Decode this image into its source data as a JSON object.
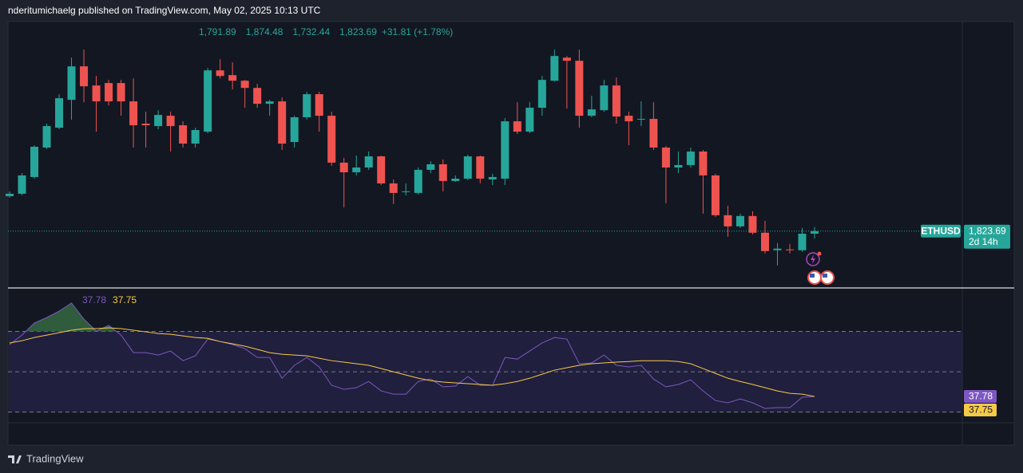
{
  "header": {
    "published": "nderitumichaelg published on TradingView.com, May 02, 2025 10:13 UTC",
    "footer": "TradingView"
  },
  "chart_data": [
    {
      "type": "candlestick",
      "symbol": "ETHUSD",
      "countdown": "2d 14h",
      "header_labels": [
        "1,791.89",
        "1,874.48",
        "1,732.44",
        "1,823.69"
      ],
      "change_label": "+31.81 (+1.78%)",
      "up_color": "#26a69a",
      "down_color": "#ef5350",
      "ylim": [
        1130,
        4410
      ],
      "open": [
        2257,
        2287,
        2494,
        2859,
        3105,
        3450,
        3865,
        3628,
        3658,
        3658,
        3431,
        3155,
        3125,
        3253,
        3135,
        2908,
        3056,
        3815,
        3756,
        3687,
        3598,
        3401,
        3431,
        2928,
        3234,
        3520,
        3253,
        2672,
        2553,
        2612,
        2750,
        2415,
        2307,
        2297,
        2583,
        2652,
        2445,
        2474,
        2750,
        2464,
        2474,
        3184,
        3056,
        3352,
        3687,
        3973,
        3934,
        3253,
        3322,
        3628,
        3253,
        3204,
        3214,
        2859,
        2612,
        2642,
        2810,
        2514,
        2021,
        1883,
        2011,
        1804,
        1587,
        1597,
        1587,
        1791.89
      ],
      "high": [
        2317,
        2543,
        2888,
        3155,
        3520,
        3973,
        4072,
        3746,
        3697,
        3697,
        3717,
        3303,
        3322,
        3303,
        3184,
        3105,
        3845,
        3953,
        3914,
        3697,
        3648,
        3450,
        3480,
        3253,
        3549,
        3549,
        3303,
        2731,
        2760,
        2810,
        2760,
        2464,
        2415,
        2612,
        2691,
        2711,
        2514,
        2770,
        2760,
        2534,
        3224,
        3421,
        3421,
        3746,
        4072,
        3993,
        4072,
        3500,
        3697,
        3727,
        3303,
        3431,
        3421,
        2879,
        2810,
        2859,
        2829,
        2534,
        2139,
        2041,
        2070,
        1952,
        1676,
        1666,
        1863,
        1874.48
      ],
      "low": [
        2238,
        2267,
        2474,
        2839,
        3086,
        3204,
        3421,
        3056,
        3381,
        3253,
        2859,
        2859,
        3086,
        2810,
        2859,
        2859,
        3036,
        3717,
        3579,
        3352,
        3352,
        3253,
        2829,
        2859,
        3204,
        3056,
        2632,
        2119,
        2514,
        2583,
        2395,
        2159,
        2267,
        2277,
        2543,
        2317,
        2435,
        2455,
        2415,
        2395,
        2395,
        3027,
        3036,
        3253,
        3677,
        3342,
        3105,
        3234,
        3303,
        3155,
        2888,
        3125,
        2829,
        2169,
        2543,
        2612,
        2041,
        2001,
        1755,
        1863,
        1784,
        1548,
        1400,
        1548,
        1567,
        1732.44
      ],
      "close": [
        2287,
        2514,
        2869,
        3125,
        3470,
        3865,
        3618,
        3431,
        3431,
        3431,
        3135,
        3135,
        3263,
        3125,
        2908,
        3076,
        3815,
        3746,
        3687,
        3598,
        3401,
        3431,
        2908,
        3234,
        3520,
        3253,
        2672,
        2553,
        2612,
        2750,
        2415,
        2297,
        2317,
        2583,
        2652,
        2445,
        2474,
        2750,
        2474,
        2494,
        3184,
        3056,
        3352,
        3697,
        3993,
        3934,
        3253,
        3332,
        3628,
        3243,
        3184,
        3214,
        2859,
        2612,
        2642,
        2810,
        2514,
        2021,
        1883,
        2011,
        1804,
        1577,
        1607,
        1587,
        1792,
        1823.69
      ]
    },
    {
      "type": "line",
      "ylim": [
        24.7,
        91.2
      ],
      "hlines": [
        70,
        50,
        30
      ],
      "band_color": "#2a2450",
      "fill_color": "#2e5c3c",
      "series": [
        {
          "color": "#7e57c2",
          "values": [
            63.5,
            68.2,
            74.2,
            76.9,
            80.1,
            84.1,
            76.1,
            70.2,
            73.0,
            68.2,
            59.5,
            59.5,
            58.3,
            60.3,
            55.5,
            57.9,
            66.2,
            65.0,
            63.5,
            61.5,
            57.1,
            57.1,
            46.8,
            53.2,
            57.1,
            52.4,
            43.3,
            41.3,
            42.1,
            45.2,
            40.5,
            38.9,
            38.9,
            45.2,
            46.4,
            42.5,
            42.9,
            47.6,
            43.3,
            43.3,
            57.1,
            56.3,
            60.3,
            64.3,
            67.0,
            66.2,
            54.0,
            54.4,
            58.3,
            53.2,
            52.4,
            53.2,
            46.4,
            42.5,
            43.7,
            46.0,
            40.5,
            35.7,
            34.6,
            36.5,
            34.6,
            31.8,
            32.2,
            32.2,
            37.3,
            37.78
          ]
        },
        {
          "color": "#f7c948",
          "values": [
            64.3,
            65.4,
            67.0,
            68.2,
            69.4,
            70.6,
            71.4,
            71.4,
            71.8,
            71.4,
            70.6,
            69.8,
            69.0,
            68.6,
            67.8,
            67.0,
            66.6,
            65.0,
            63.9,
            62.7,
            61.1,
            59.5,
            58.7,
            58.3,
            57.9,
            56.7,
            55.5,
            54.8,
            54.0,
            53.2,
            51.6,
            50.0,
            48.4,
            46.8,
            45.6,
            44.9,
            44.5,
            44.1,
            43.7,
            43.3,
            44.1,
            45.2,
            46.8,
            48.8,
            50.8,
            52.0,
            53.2,
            54.0,
            54.4,
            54.8,
            55.1,
            55.5,
            55.5,
            55.5,
            55.1,
            54.0,
            51.6,
            49.2,
            46.8,
            45.2,
            43.7,
            42.1,
            40.5,
            39.3,
            38.9,
            37.75
          ]
        }
      ]
    }
  ]
}
